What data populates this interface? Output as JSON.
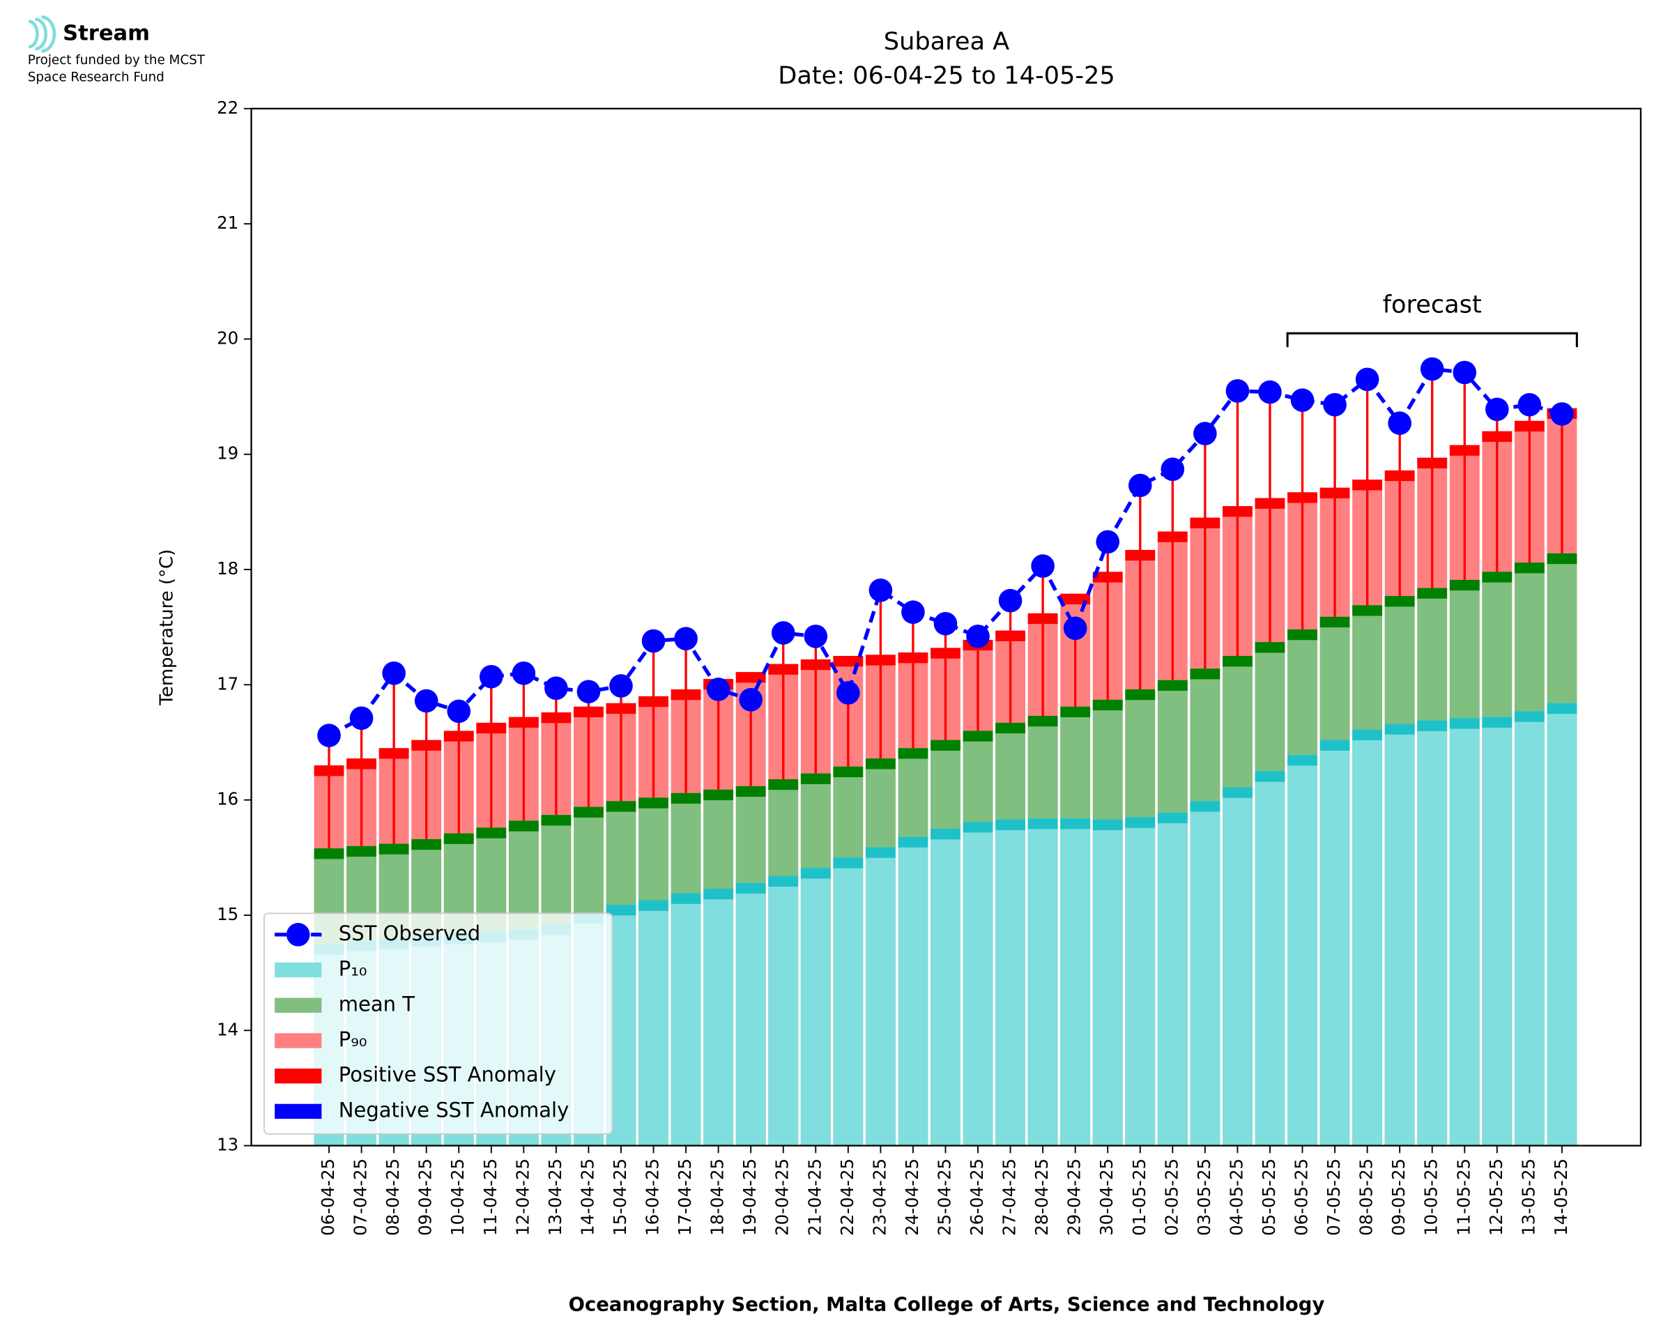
{
  "logo": {
    "name": "Stream",
    "lines": [
      "Project funded by the MCST",
      "Space Research Fund"
    ]
  },
  "chart_data": {
    "type": "bar",
    "title": [
      "Subarea A",
      "Date: 06-04-25 to 14-05-25"
    ],
    "y_label": "Temperature (°C)",
    "x_label": "Oceanography Section, Malta College of Arts, Science and Technology",
    "categories": [
      "06-04-25",
      "07-04-25",
      "08-04-25",
      "09-04-25",
      "10-04-25",
      "11-04-25",
      "12-04-25",
      "13-04-25",
      "14-04-25",
      "15-04-25",
      "16-04-25",
      "17-04-25",
      "18-04-25",
      "19-04-25",
      "20-04-25",
      "21-04-25",
      "22-04-25",
      "23-04-25",
      "24-04-25",
      "25-04-25",
      "26-04-25",
      "27-04-25",
      "28-04-25",
      "29-04-25",
      "30-04-25",
      "01-05-25",
      "02-05-25",
      "03-05-25",
      "04-05-25",
      "05-05-25",
      "06-05-25",
      "07-05-25",
      "08-05-25",
      "09-05-25",
      "10-05-25",
      "11-05-25",
      "12-05-25",
      "13-05-25",
      "14-05-25"
    ],
    "series": [
      {
        "name": "SST Observed",
        "type": "line",
        "color": "#0000ff",
        "values": [
          16.56,
          16.71,
          17.1,
          16.86,
          16.77,
          17.07,
          17.1,
          16.97,
          16.94,
          16.99,
          17.38,
          17.4,
          16.96,
          16.87,
          17.45,
          17.42,
          16.93,
          17.82,
          17.63,
          17.53,
          17.42,
          17.73,
          18.03,
          17.49,
          18.24,
          18.73,
          18.87,
          19.18,
          19.55,
          19.54,
          19.47,
          19.43,
          19.65,
          19.27,
          19.74,
          19.71,
          19.39,
          19.43,
          19.35
        ]
      },
      {
        "name": "P₁₀",
        "type": "bar",
        "color": "#80dede",
        "edge_color": "#1fc1c9",
        "values": [
          14.75,
          14.78,
          14.8,
          14.82,
          14.84,
          14.86,
          14.88,
          14.92,
          15.02,
          15.09,
          15.13,
          15.19,
          15.23,
          15.28,
          15.34,
          15.41,
          15.5,
          15.59,
          15.68,
          15.75,
          15.81,
          15.83,
          15.84,
          15.84,
          15.83,
          15.85,
          15.89,
          15.99,
          16.11,
          16.25,
          16.39,
          16.52,
          16.61,
          16.66,
          16.69,
          16.71,
          16.72,
          16.77,
          16.84
        ]
      },
      {
        "name": "mean T",
        "type": "bar",
        "color": "#80bf80",
        "edge_color": "#008000",
        "values": [
          15.58,
          15.6,
          15.62,
          15.66,
          15.71,
          15.76,
          15.82,
          15.87,
          15.94,
          15.99,
          16.02,
          16.06,
          16.09,
          16.12,
          16.18,
          16.23,
          16.29,
          16.36,
          16.45,
          16.52,
          16.6,
          16.67,
          16.73,
          16.81,
          16.87,
          16.96,
          17.04,
          17.14,
          17.25,
          17.37,
          17.48,
          17.59,
          17.69,
          17.77,
          17.84,
          17.91,
          17.98,
          18.06,
          18.14
        ]
      },
      {
        "name": "P₉₀",
        "type": "bar",
        "color": "#ff8080",
        "edge_color": "#ff0000",
        "values": [
          16.3,
          16.36,
          16.45,
          16.52,
          16.6,
          16.67,
          16.72,
          16.76,
          16.81,
          16.84,
          16.9,
          16.96,
          17.05,
          17.11,
          17.18,
          17.22,
          17.25,
          17.26,
          17.28,
          17.32,
          17.39,
          17.47,
          17.62,
          17.79,
          17.98,
          18.17,
          18.33,
          18.45,
          18.55,
          18.62,
          18.67,
          18.71,
          18.78,
          18.86,
          18.97,
          19.08,
          19.2,
          19.29,
          19.4
        ]
      }
    ],
    "anomaly_legend": [
      {
        "name": "Positive SST Anomaly",
        "color": "#ff0000"
      },
      {
        "name": "Negative SST Anomaly",
        "color": "#0000ff"
      }
    ],
    "annotation": {
      "text": "forecast",
      "x_start": "06-05-25",
      "x_end": "14-05-25",
      "y": 20.05
    },
    "ylim": [
      13,
      22
    ],
    "yticks": [
      13,
      14,
      15,
      16,
      17,
      18,
      19,
      20,
      21,
      22
    ],
    "legend": "lower left"
  }
}
